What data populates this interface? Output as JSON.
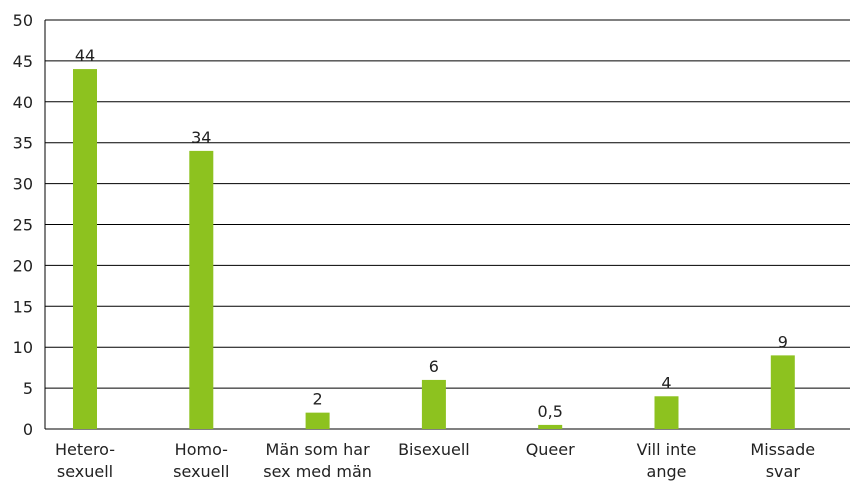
{
  "chart_data": {
    "type": "bar",
    "categories": [
      "Hetero-\nsexuell",
      "Homo-\nsexuell",
      "Män som har\nsex med män",
      "Bisexuell",
      "Queer",
      "Vill inte\nange",
      "Missade\nsvar"
    ],
    "values": [
      44,
      34,
      2,
      6,
      0.5,
      4,
      9
    ],
    "value_labels": [
      "44",
      "34",
      "2",
      "6",
      "0,5",
      "4",
      "9"
    ],
    "color": "#8dc21f",
    "ylim": [
      0,
      50
    ],
    "yticks": [
      0,
      5,
      10,
      15,
      20,
      25,
      30,
      35,
      40,
      45,
      50
    ],
    "grid": true
  }
}
